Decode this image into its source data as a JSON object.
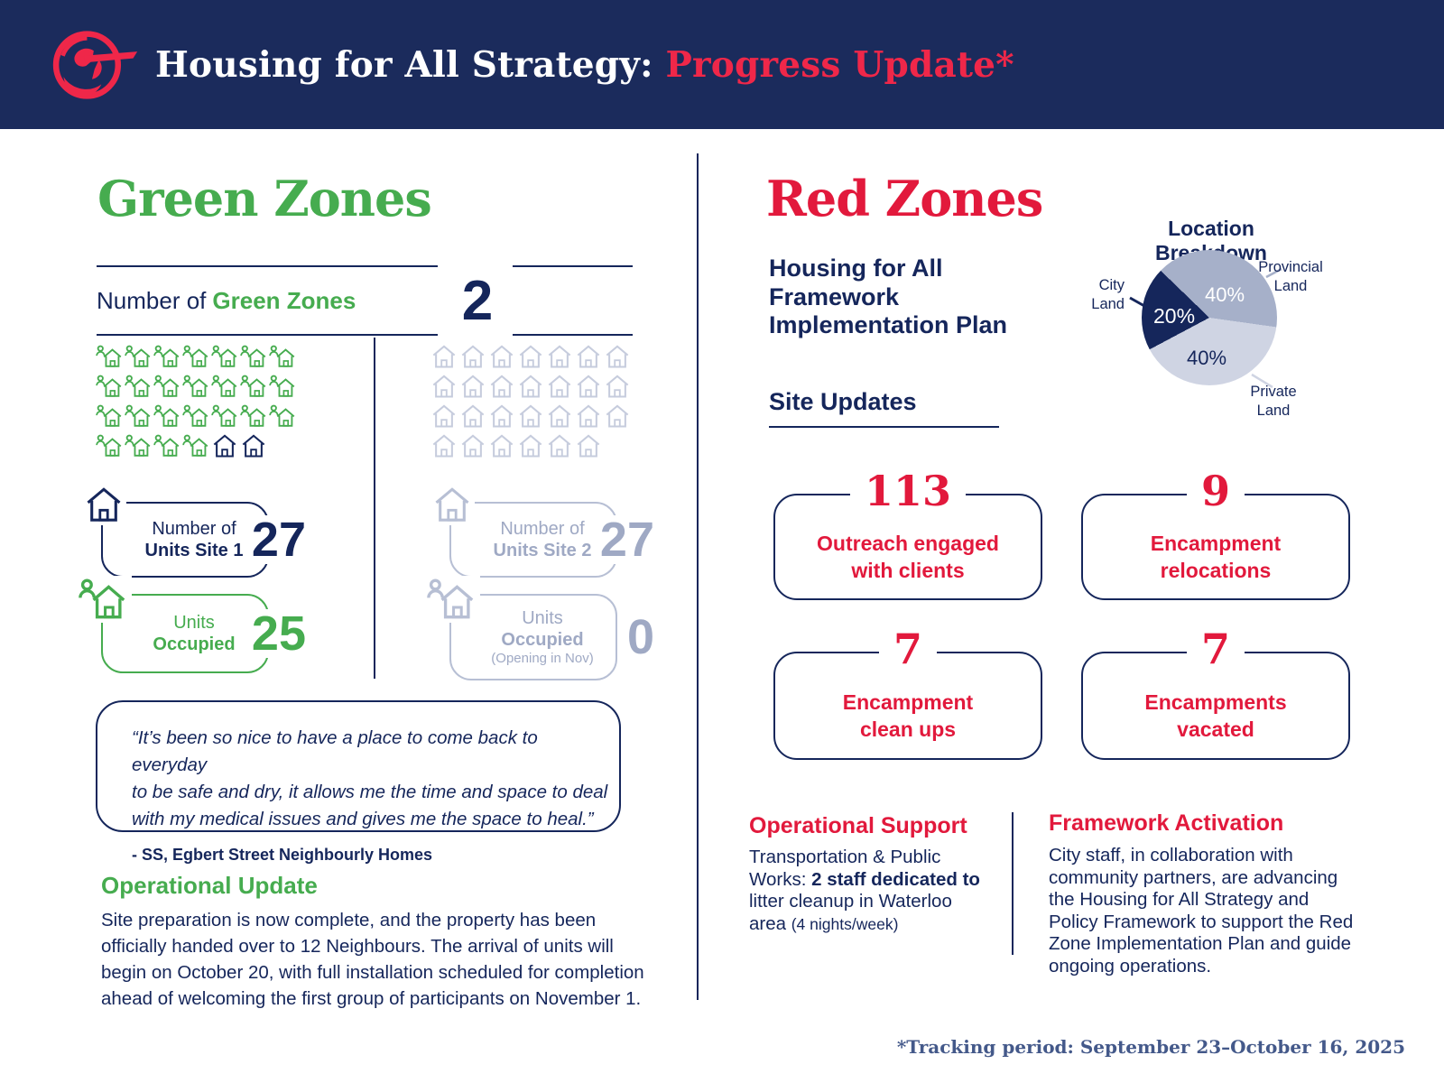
{
  "header": {
    "title_main": "Housing for All Strategy: ",
    "title_accent": "Progress Update*",
    "logo": "city-emblem"
  },
  "colors": {
    "navy": "#15265B",
    "green": "#46AC4F",
    "red": "#E2193C",
    "red_bright": "#EF2749",
    "gray_text": "#9FA9C4",
    "gray_border": "#B7BFD4",
    "gray_house": "#C6CCDD",
    "pie_mid": "#A6B0C9",
    "pie_light": "#CFD4E3",
    "header_bg": "#1B2B5C"
  },
  "green_zones": {
    "title": "Green Zones",
    "count_label_prefix": "Number of",
    "count_label_accent": "Green Zones",
    "count_value": "2",
    "site1": {
      "grid": {
        "total": 27,
        "occupied": 25
      },
      "units_box": {
        "line1": "Number of",
        "line2": "Units Site 1",
        "value": "27"
      },
      "occupied_box": {
        "line1": "Units",
        "line2": "Occupied",
        "value": "25"
      }
    },
    "site2": {
      "grid": {
        "total": 27,
        "occupied": 0
      },
      "units_box": {
        "line1": "Number of",
        "line2": "Units Site 2",
        "value": "27"
      },
      "occupied_box": {
        "line1": "Units",
        "line2": "Occupied",
        "line3": "(Opening in Nov)",
        "value": "0"
      }
    },
    "quote": {
      "lines": [
        "“It’s been so nice to have a place to come back to everyday",
        "to be safe and dry, it allows me the time and space to deal",
        "with my medical issues and gives me the space to heal.”"
      ],
      "attribution": "- SS, Egbert Street Neighbourly Homes"
    },
    "operational_update": {
      "heading": "Operational Update",
      "lines": [
        "Site preparation is now complete, and the property has been",
        "officially handed over to 12 Neighbours. The arrival of units will",
        "begin on October 20, with full installation scheduled for completion",
        "ahead of welcoming the first group of participants on November 1."
      ]
    }
  },
  "red_zones": {
    "title": "Red Zones",
    "subtitle": "Housing for All Framework Implementation Plan",
    "site_updates_heading": "Site Updates",
    "stats": [
      {
        "value": "113",
        "label_lines": [
          "Outreach engaged",
          "with clients"
        ]
      },
      {
        "value": "9",
        "label_lines": [
          "Encampment",
          "relocations"
        ]
      },
      {
        "value": "7",
        "label_lines": [
          "Encampment",
          "clean ups"
        ]
      },
      {
        "value": "7",
        "label_lines": [
          "Encampments",
          "vacated"
        ]
      }
    ],
    "operational_support": {
      "heading": "Operational Support",
      "l1": "Transportation & Public",
      "l2a": "Works: ",
      "l2b": "2 staff dedicated to",
      "l3": "litter cleanup in Waterloo",
      "l4a": "area ",
      "l4b": "(4 nights/week)"
    },
    "framework_activation": {
      "heading": "Framework Activation",
      "lines": [
        "City staff, in collaboration with",
        "community partners, are advancing",
        "the Housing for All Strategy and",
        "Policy Framework to support the Red",
        "Zone Implementation Plan and guide",
        "ongoing operations."
      ]
    }
  },
  "chart_data": {
    "type": "pie",
    "title": "Location Breakdown",
    "start_angle_deg": 98,
    "legend_position": "callout-labels",
    "slices": [
      {
        "label": "Private Land",
        "value": 40,
        "pct": "40%",
        "color": "#CFD4E3"
      },
      {
        "label": "City Land",
        "value": 20,
        "pct": "20%",
        "color": "#15265B"
      },
      {
        "label": "Provincial Land",
        "value": 40,
        "pct": "40%",
        "color": "#A6B0C9"
      }
    ]
  },
  "footer": {
    "note": "*Tracking period: September 23–October 16, 2025"
  }
}
